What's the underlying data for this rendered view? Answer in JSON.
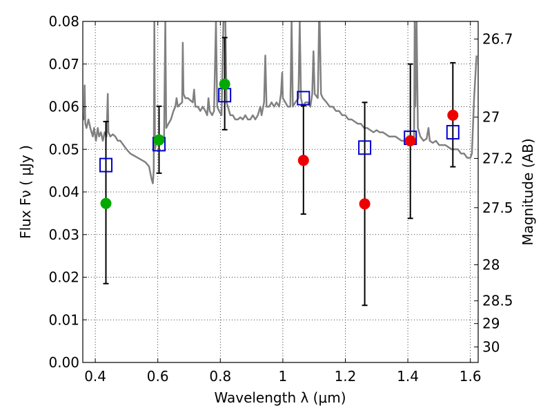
{
  "chart_data": {
    "type": "scatter",
    "xlabel": "Wavelength  λ (μm)",
    "ylabel": "Flux  Fν  ( μJy )",
    "y2label": "Magnitude (AB)",
    "xlim": [
      0.36,
      1.625
    ],
    "ylim": [
      0.0,
      0.08
    ],
    "grid": true,
    "x_ticks": [
      0.4,
      0.6,
      0.8,
      1.0,
      1.2,
      1.4,
      1.6
    ],
    "x_tick_labels": [
      "0.4",
      "0.6",
      "0.8",
      "1",
      "1.2",
      "1.4",
      "1.6"
    ],
    "y_ticks": [
      0.0,
      0.01,
      0.02,
      0.03,
      0.04,
      0.05,
      0.06,
      0.07,
      0.08
    ],
    "y_tick_labels": [
      "0.00",
      "0.01",
      "0.02",
      "0.03",
      "0.04",
      "0.05",
      "0.06",
      "0.07",
      "0.08"
    ],
    "y2_ticks": [
      {
        "mag": 26.7,
        "label": "26.7"
      },
      {
        "mag": 27.0,
        "label": "27"
      },
      {
        "mag": 27.2,
        "label": "27.2"
      },
      {
        "mag": 27.5,
        "label": "27.5"
      },
      {
        "mag": 28.0,
        "label": "28"
      },
      {
        "mag": 28.5,
        "label": "28.5"
      },
      {
        "mag": 29.0,
        "label": "29"
      },
      {
        "mag": 30.0,
        "label": "30"
      }
    ],
    "colors": {
      "spectrum": "#808080",
      "model": "#0000cc",
      "green": "#00aa00",
      "red": "#ee0000",
      "errorbar": "#000000"
    },
    "model_points": [
      {
        "x": 0.434,
        "y": 0.0463
      },
      {
        "x": 0.604,
        "y": 0.0512
      },
      {
        "x": 0.814,
        "y": 0.0627
      },
      {
        "x": 1.066,
        "y": 0.062
      },
      {
        "x": 1.262,
        "y": 0.0504
      },
      {
        "x": 1.408,
        "y": 0.0527
      },
      {
        "x": 1.544,
        "y": 0.054
      }
    ],
    "measurements": [
      {
        "x": 0.434,
        "y": 0.0373,
        "ylo": 0.0185,
        "yhi": 0.0565,
        "color": "green"
      },
      {
        "x": 0.604,
        "y": 0.0522,
        "ylo": 0.0444,
        "yhi": 0.0601,
        "color": "green"
      },
      {
        "x": 0.814,
        "y": 0.0653,
        "ylo": 0.0546,
        "yhi": 0.0762,
        "color": "green"
      },
      {
        "x": 1.066,
        "y": 0.0474,
        "ylo": 0.0348,
        "yhi": 0.0602,
        "color": "red"
      },
      {
        "x": 1.262,
        "y": 0.0372,
        "ylo": 0.0134,
        "yhi": 0.061,
        "color": "red"
      },
      {
        "x": 1.408,
        "y": 0.052,
        "ylo": 0.0338,
        "yhi": 0.07,
        "color": "red"
      },
      {
        "x": 1.544,
        "y": 0.058,
        "ylo": 0.0459,
        "yhi": 0.0703,
        "color": "red"
      }
    ],
    "spectrum": [
      [
        0.36,
        0.058
      ],
      [
        0.364,
        0.057
      ],
      [
        0.366,
        0.065
      ],
      [
        0.368,
        0.056
      ],
      [
        0.372,
        0.055
      ],
      [
        0.378,
        0.057
      ],
      [
        0.384,
        0.055
      ],
      [
        0.388,
        0.054
      ],
      [
        0.392,
        0.053
      ],
      [
        0.396,
        0.055
      ],
      [
        0.402,
        0.052
      ],
      [
        0.408,
        0.055
      ],
      [
        0.412,
        0.053
      ],
      [
        0.418,
        0.054
      ],
      [
        0.424,
        0.052
      ],
      [
        0.43,
        0.054
      ],
      [
        0.436,
        0.053
      ],
      [
        0.44,
        0.063
      ],
      [
        0.442,
        0.054
      ],
      [
        0.448,
        0.053
      ],
      [
        0.456,
        0.0535
      ],
      [
        0.464,
        0.053
      ],
      [
        0.472,
        0.052
      ],
      [
        0.48,
        0.052
      ],
      [
        0.49,
        0.051
      ],
      [
        0.5,
        0.05
      ],
      [
        0.512,
        0.049
      ],
      [
        0.524,
        0.0485
      ],
      [
        0.536,
        0.048
      ],
      [
        0.548,
        0.0475
      ],
      [
        0.56,
        0.047
      ],
      [
        0.572,
        0.046
      ],
      [
        0.58,
        0.043
      ],
      [
        0.584,
        0.042
      ],
      [
        0.587,
        0.045
      ],
      [
        0.589,
        0.08
      ],
      [
        0.591,
        0.05
      ],
      [
        0.596,
        0.052
      ],
      [
        0.604,
        0.052
      ],
      [
        0.612,
        0.053
      ],
      [
        0.62,
        0.053
      ],
      [
        0.624,
        0.08
      ],
      [
        0.627,
        0.055
      ],
      [
        0.634,
        0.056
      ],
      [
        0.642,
        0.057
      ],
      [
        0.65,
        0.059
      ],
      [
        0.656,
        0.06
      ],
      [
        0.66,
        0.062
      ],
      [
        0.664,
        0.06
      ],
      [
        0.67,
        0.0605
      ],
      [
        0.678,
        0.061
      ],
      [
        0.68,
        0.075
      ],
      [
        0.682,
        0.063
      ],
      [
        0.688,
        0.062
      ],
      [
        0.696,
        0.062
      ],
      [
        0.704,
        0.0615
      ],
      [
        0.712,
        0.061
      ],
      [
        0.716,
        0.064
      ],
      [
        0.72,
        0.06
      ],
      [
        0.728,
        0.06
      ],
      [
        0.736,
        0.059
      ],
      [
        0.744,
        0.06
      ],
      [
        0.752,
        0.059
      ],
      [
        0.758,
        0.058
      ],
      [
        0.762,
        0.062
      ],
      [
        0.766,
        0.059
      ],
      [
        0.774,
        0.058
      ],
      [
        0.78,
        0.059
      ],
      [
        0.786,
        0.08
      ],
      [
        0.79,
        0.06
      ],
      [
        0.796,
        0.059
      ],
      [
        0.804,
        0.058
      ],
      [
        0.81,
        0.08
      ],
      [
        0.813,
        0.08
      ],
      [
        0.816,
        0.08
      ],
      [
        0.82,
        0.061
      ],
      [
        0.824,
        0.06
      ],
      [
        0.832,
        0.058
      ],
      [
        0.84,
        0.058
      ],
      [
        0.848,
        0.057
      ],
      [
        0.856,
        0.057
      ],
      [
        0.864,
        0.0575
      ],
      [
        0.872,
        0.057
      ],
      [
        0.88,
        0.058
      ],
      [
        0.888,
        0.057
      ],
      [
        0.896,
        0.057
      ],
      [
        0.904,
        0.058
      ],
      [
        0.912,
        0.057
      ],
      [
        0.92,
        0.058
      ],
      [
        0.928,
        0.06
      ],
      [
        0.932,
        0.058
      ],
      [
        0.94,
        0.061
      ],
      [
        0.944,
        0.072
      ],
      [
        0.948,
        0.06
      ],
      [
        0.956,
        0.06
      ],
      [
        0.964,
        0.061
      ],
      [
        0.972,
        0.06
      ],
      [
        0.98,
        0.061
      ],
      [
        0.988,
        0.06
      ],
      [
        0.994,
        0.063
      ],
      [
        0.998,
        0.068
      ],
      [
        1.0,
        0.062
      ],
      [
        1.008,
        0.061
      ],
      [
        1.016,
        0.06
      ],
      [
        1.024,
        0.06
      ],
      [
        1.028,
        0.08
      ],
      [
        1.032,
        0.06
      ],
      [
        1.04,
        0.061
      ],
      [
        1.05,
        0.062
      ],
      [
        1.054,
        0.08
      ],
      [
        1.058,
        0.062
      ],
      [
        1.064,
        0.06
      ],
      [
        1.072,
        0.061
      ],
      [
        1.08,
        0.061
      ],
      [
        1.088,
        0.06
      ],
      [
        1.094,
        0.063
      ],
      [
        1.098,
        0.073
      ],
      [
        1.102,
        0.063
      ],
      [
        1.112,
        0.062
      ],
      [
        1.116,
        0.08
      ],
      [
        1.118,
        0.08
      ],
      [
        1.122,
        0.063
      ],
      [
        1.128,
        0.062
      ],
      [
        1.14,
        0.061
      ],
      [
        1.15,
        0.06
      ],
      [
        1.16,
        0.06
      ],
      [
        1.17,
        0.059
      ],
      [
        1.18,
        0.059
      ],
      [
        1.19,
        0.058
      ],
      [
        1.2,
        0.058
      ],
      [
        1.21,
        0.057
      ],
      [
        1.22,
        0.057
      ],
      [
        1.23,
        0.0565
      ],
      [
        1.24,
        0.056
      ],
      [
        1.25,
        0.056
      ],
      [
        1.26,
        0.055
      ],
      [
        1.27,
        0.055
      ],
      [
        1.28,
        0.0545
      ],
      [
        1.29,
        0.054
      ],
      [
        1.3,
        0.0545
      ],
      [
        1.31,
        0.054
      ],
      [
        1.32,
        0.054
      ],
      [
        1.33,
        0.0535
      ],
      [
        1.34,
        0.053
      ],
      [
        1.35,
        0.053
      ],
      [
        1.36,
        0.053
      ],
      [
        1.37,
        0.0525
      ],
      [
        1.38,
        0.052
      ],
      [
        1.39,
        0.052
      ],
      [
        1.4,
        0.0525
      ],
      [
        1.41,
        0.052
      ],
      [
        1.42,
        0.052
      ],
      [
        1.422,
        0.08
      ],
      [
        1.424,
        0.06
      ],
      [
        1.428,
        0.08
      ],
      [
        1.432,
        0.055
      ],
      [
        1.44,
        0.053
      ],
      [
        1.45,
        0.052
      ],
      [
        1.46,
        0.0525
      ],
      [
        1.466,
        0.055
      ],
      [
        1.47,
        0.052
      ],
      [
        1.48,
        0.0515
      ],
      [
        1.49,
        0.052
      ],
      [
        1.5,
        0.051
      ],
      [
        1.51,
        0.051
      ],
      [
        1.52,
        0.051
      ],
      [
        1.53,
        0.0505
      ],
      [
        1.54,
        0.05
      ],
      [
        1.55,
        0.05
      ],
      [
        1.56,
        0.05
      ],
      [
        1.57,
        0.049
      ],
      [
        1.58,
        0.049
      ],
      [
        1.59,
        0.048
      ],
      [
        1.6,
        0.048
      ],
      [
        1.605,
        0.049
      ],
      [
        1.612,
        0.062
      ],
      [
        1.62,
        0.072
      ]
    ]
  }
}
